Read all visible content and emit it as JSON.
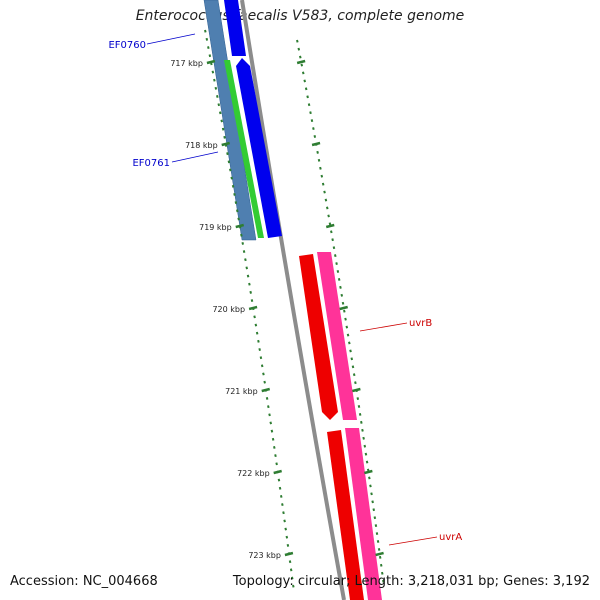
{
  "title": "Enterococcus faecalis V583, complete genome",
  "footer": {
    "accession": "Accession: NC_004668",
    "summary": "Topology: circular; Length: 3,218,031 bp; Genes: 3,192"
  },
  "colors": {
    "backbone": "#8c8c8c",
    "tick": "#2e7d32",
    "gene_blue": "#0000ee",
    "gene_steel": "#4f7fb0",
    "gene_green": "#33cc33",
    "gene_red": "#ee0000",
    "gene_pink": "#ff3399",
    "label_blue": "#0000cc",
    "label_red": "#cc0000"
  },
  "ticks": [
    {
      "label": "717 kbp",
      "kbp": 717
    },
    {
      "label": "718 kbp",
      "kbp": 718
    },
    {
      "label": "719 kbp",
      "kbp": 719
    },
    {
      "label": "720 kbp",
      "kbp": 720
    },
    {
      "label": "721 kbp",
      "kbp": 721
    },
    {
      "label": "722 kbp",
      "kbp": 722
    },
    {
      "label": "723 kbp",
      "kbp": 723
    }
  ],
  "genes": [
    {
      "name": "EF0760",
      "color": "blue",
      "strand": "left"
    },
    {
      "name": "EF0761",
      "color": "steel",
      "strand": "left"
    },
    {
      "name": "uvrB",
      "color": "red",
      "strand": "right"
    },
    {
      "name": "uvrA",
      "color": "red",
      "strand": "right"
    }
  ]
}
